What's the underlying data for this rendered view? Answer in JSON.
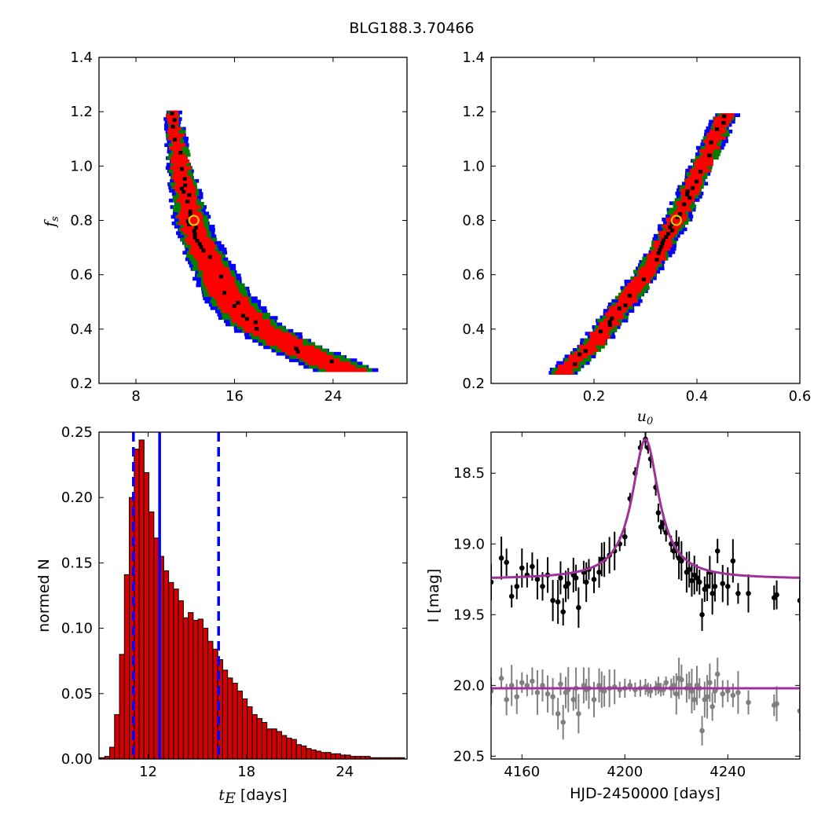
{
  "figure": {
    "title": "BLG188.3.70466"
  },
  "colors": {
    "black_region": "#000000",
    "red_region": "#ff0000",
    "green_region": "#008000",
    "blue_region": "#0000ff",
    "best_fit_marker": "#d4c800",
    "hist_fill": "#d40000",
    "median_line": "#0000ff",
    "model_curve": "#a0309a",
    "data_points_primary": "#000000",
    "data_points_residual": "#808080"
  },
  "chart_data": [
    {
      "id": "fs_vs_tE",
      "type": "heatmap",
      "title": "",
      "xlabel": "",
      "ylabel": "f_s",
      "xlim": [
        5,
        30
      ],
      "ylim": [
        0.2,
        1.4
      ],
      "xticks": [
        "8",
        "16",
        "24"
      ],
      "yticks": [
        "0.2",
        "0.4",
        "0.6",
        "0.8",
        "1.0",
        "1.2",
        "1.4"
      ],
      "best_fit": {
        "x": 12.7,
        "y": 0.8
      },
      "confidence_band": {
        "levels": [
          "black",
          "red",
          "green",
          "blue"
        ],
        "centre_curve_x": [
          11.0,
          11.6,
          12.5,
          13.6,
          15.5,
          17.5,
          20.5,
          25.0
        ],
        "centre_curve_y": [
          1.2,
          1.0,
          0.8,
          0.68,
          0.52,
          0.42,
          0.34,
          0.25
        ]
      }
    },
    {
      "id": "fs_vs_u0",
      "type": "heatmap",
      "title": "",
      "xlabel": "u_0",
      "ylabel": "",
      "xlim": [
        0.0,
        0.6
      ],
      "ylim": [
        0.2,
        1.4
      ],
      "xticks": [
        "0.2",
        "0.4",
        "0.6"
      ],
      "yticks": [
        "0.2",
        "0.4",
        "0.6",
        "0.8",
        "1.0",
        "1.2",
        "1.4"
      ],
      "best_fit": {
        "x": 0.36,
        "y": 0.8
      },
      "confidence_band": {
        "levels": [
          "black",
          "red",
          "green",
          "blue"
        ],
        "centre_curve_x": [
          0.14,
          0.2,
          0.27,
          0.32,
          0.36,
          0.41,
          0.46
        ],
        "centre_curve_y": [
          0.24,
          0.35,
          0.52,
          0.66,
          0.8,
          1.0,
          1.2
        ]
      }
    },
    {
      "id": "tE_histogram",
      "type": "bar",
      "title": "",
      "xlabel": "t_E",
      "xlabel_unit": "[days]",
      "ylabel": "normed N",
      "xlim": [
        9,
        27.8
      ],
      "ylim": [
        0.0,
        0.25
      ],
      "xticks": [
        "12",
        "18",
        "24"
      ],
      "yticks": [
        "0.00",
        "0.05",
        "0.10",
        "0.15",
        "0.20",
        "0.25"
      ],
      "bin_start": 9.05,
      "bin_width": 0.3,
      "values": [
        0.001,
        0.002,
        0.009,
        0.034,
        0.08,
        0.141,
        0.2,
        0.237,
        0.244,
        0.219,
        0.189,
        0.169,
        0.155,
        0.144,
        0.135,
        0.13,
        0.121,
        0.108,
        0.112,
        0.106,
        0.107,
        0.1,
        0.09,
        0.084,
        0.076,
        0.068,
        0.062,
        0.058,
        0.052,
        0.046,
        0.04,
        0.034,
        0.031,
        0.028,
        0.023,
        0.023,
        0.021,
        0.018,
        0.016,
        0.015,
        0.011,
        0.01,
        0.008,
        0.007,
        0.006,
        0.005,
        0.005,
        0.004,
        0.004,
        0.003,
        0.003,
        0.002,
        0.002,
        0.002,
        0.002,
        0.001,
        0.001,
        0.001,
        0.001,
        0.001,
        0.001,
        0.001
      ],
      "vlines": [
        {
          "x": 11.1,
          "style": "dashed"
        },
        {
          "x": 12.7,
          "style": "solid"
        },
        {
          "x": 16.3,
          "style": "dashed"
        }
      ]
    },
    {
      "id": "light_curve",
      "type": "scatter",
      "title": "",
      "xlabel": "HJD-2450000 [days]",
      "ylabel": "I [mag]",
      "xlim": [
        4148,
        4268
      ],
      "ylim": [
        20.52,
        18.21
      ],
      "y_inverted": true,
      "xticks": [
        "4160",
        "4200",
        "4240"
      ],
      "yticks": [
        "18.5",
        "19.0",
        "19.5",
        "20.0",
        "20.5"
      ],
      "model": {
        "baseline": 19.25,
        "t0": 4208,
        "peak": 18.26,
        "width": 8
      },
      "residual_model": {
        "baseline": 20.02
      },
      "series": [
        {
          "role": "data",
          "x": [
            4148,
            4152,
            4154,
            4156,
            4158,
            4160,
            4162,
            4164,
            4166,
            4168,
            4170,
            4172,
            4174,
            4175,
            4176,
            4177,
            4178,
            4180,
            4181,
            4182,
            4184,
            4185,
            4186,
            4188,
            4190,
            4191,
            4192,
            4194,
            4196,
            4198,
            4200,
            4202,
            4204,
            4206,
            4208,
            4209,
            4210,
            4212,
            4213,
            4214,
            4215,
            4216,
            4218,
            4219,
            4220,
            4221,
            4222,
            4224,
            4225,
            4226,
            4227,
            4228,
            4229,
            4230,
            4231,
            4232,
            4233,
            4234,
            4235,
            4236,
            4238,
            4240,
            4242,
            4244,
            4248,
            4258,
            4259,
            4268
          ],
          "y": [
            19.27,
            19.1,
            19.13,
            19.37,
            19.3,
            19.17,
            19.22,
            19.16,
            19.25,
            19.3,
            19.22,
            19.4,
            19.41,
            19.24,
            19.48,
            19.3,
            19.28,
            19.22,
            19.24,
            19.45,
            19.2,
            19.27,
            19.18,
            19.25,
            19.2,
            19.11,
            19.11,
            19.08,
            19.05,
            19.0,
            18.95,
            18.68,
            18.5,
            18.32,
            18.26,
            18.32,
            18.4,
            18.6,
            18.78,
            18.88,
            18.85,
            18.92,
            19.0,
            19.05,
            19.0,
            19.1,
            19.12,
            19.2,
            19.18,
            19.26,
            19.22,
            19.24,
            19.27,
            19.5,
            19.32,
            19.3,
            19.2,
            19.35,
            19.3,
            19.05,
            19.28,
            19.3,
            19.12,
            19.35,
            19.35,
            19.38,
            19.36,
            19.4
          ]
        },
        {
          "role": "residual",
          "x": [
            4148,
            4152,
            4154,
            4156,
            4158,
            4160,
            4162,
            4164,
            4166,
            4168,
            4170,
            4172,
            4174,
            4175,
            4176,
            4177,
            4178,
            4180,
            4181,
            4182,
            4184,
            4185,
            4186,
            4188,
            4190,
            4191,
            4192,
            4194,
            4196,
            4198,
            4200,
            4202,
            4204,
            4206,
            4208,
            4209,
            4210,
            4212,
            4213,
            4214,
            4215,
            4216,
            4218,
            4219,
            4220,
            4221,
            4222,
            4224,
            4225,
            4226,
            4227,
            4228,
            4229,
            4230,
            4231,
            4232,
            4233,
            4234,
            4235,
            4236,
            4238,
            4240,
            4242,
            4244,
            4248,
            4258,
            4259,
            4268
          ],
          "y": [
            20.04,
            19.95,
            20.1,
            20.0,
            20.08,
            19.98,
            20.0,
            19.97,
            20.05,
            20.0,
            20.06,
            20.08,
            20.2,
            19.99,
            20.26,
            20.05,
            20.03,
            20.1,
            20.02,
            20.2,
            20.0,
            20.03,
            20.02,
            20.1,
            20.0,
            20.03,
            20.04,
            20.02,
            20.01,
            20.03,
            20.02,
            20.0,
            20.03,
            20.02,
            20.01,
            20.03,
            20.04,
            20.02,
            20.0,
            20.03,
            20.03,
            19.98,
            20.02,
            20.0,
            20.06,
            19.95,
            19.96,
            20.02,
            20.0,
            20.04,
            20.1,
            20.0,
            20.02,
            20.32,
            20.1,
            20.08,
            19.98,
            20.15,
            20.04,
            19.92,
            20.06,
            20.04,
            20.07,
            20.05,
            20.12,
            20.14,
            20.13,
            20.18
          ]
        }
      ]
    }
  ]
}
